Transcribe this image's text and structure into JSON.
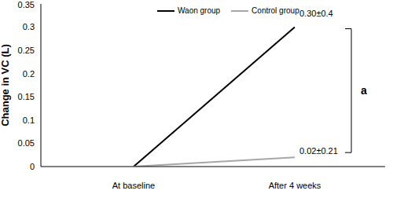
{
  "chart_data": {
    "type": "line",
    "categories": [
      "At baseline",
      "After 4 weeks"
    ],
    "series": [
      {
        "name": "Waon group",
        "color": "#000000",
        "values": [
          0,
          0.3
        ],
        "value_labels": [
          null,
          "0.30±0.4"
        ]
      },
      {
        "name": "Control group",
        "color": "#a6a6a6",
        "values": [
          0,
          0.02
        ],
        "value_labels": [
          null,
          "0.02±0.21"
        ]
      }
    ],
    "y_label": "Change in VC (L)",
    "ylim": [
      0,
      0.35
    ],
    "yticks": [
      0,
      0.05,
      0.1,
      0.15,
      0.2,
      0.25,
      0.3,
      0.35
    ],
    "annotation": "a",
    "legend": "top",
    "grid": false,
    "marker": "none"
  }
}
